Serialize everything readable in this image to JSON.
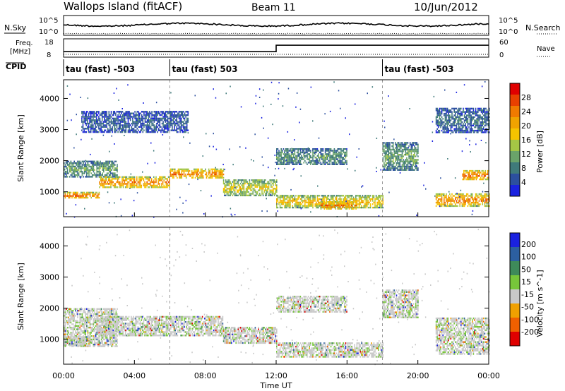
{
  "header": {
    "station": "Wallops Island (fitACF)",
    "beam": "Beam 11",
    "date": "10/Jun/2012"
  },
  "top_panels": {
    "nsky_label": "N.Sky",
    "nsearch_label": "N.Search",
    "freq_label_line1": "Freq.",
    "freq_label_line2": "[MHz]",
    "nave_label": "Nave",
    "cpid_label": "CPID",
    "left_ticks_nsky": [
      "10^5",
      "10^0"
    ],
    "right_ticks_nsearch": [
      "10^5",
      "10^0"
    ],
    "left_ticks_freq": [
      "18",
      "8"
    ],
    "right_ticks_nave": [
      "60",
      "0"
    ],
    "cpid_segments": [
      {
        "start_hour": 0,
        "label": "tau (fast) -503"
      },
      {
        "start_hour": 6,
        "label": "tau (fast) 503"
      },
      {
        "start_hour": 18,
        "label": "tau (fast) -503"
      }
    ],
    "freq_steps": [
      {
        "from_hour": 0,
        "to_hour": 12,
        "value": 11
      },
      {
        "from_hour": 12,
        "to_hour": 24,
        "value": 14.5
      }
    ]
  },
  "chart_data": [
    {
      "type": "heatmap",
      "name": "power",
      "xlabel": "",
      "ylabel": "Slant Range [km]",
      "xlim": [
        0,
        24
      ],
      "ylim": [
        200,
        4600
      ],
      "yticks": [
        "1000",
        "2000",
        "3000",
        "4000"
      ],
      "colorbar_label": "Power [dB]",
      "colorbar_ticks": [
        "4",
        "8",
        "12",
        "16",
        "20",
        "24",
        "28"
      ],
      "colorscale": [
        "#1a22e0",
        "#2c4f9e",
        "#3f7a7a",
        "#6aa36a",
        "#a4c645",
        "#f5c400",
        "#f0a300",
        "#f07a00",
        "#e84000",
        "#e00000"
      ],
      "bands": [
        {
          "from_hour": 0.0,
          "to_hour": 2.0,
          "range_from": 800,
          "range_to": 1000,
          "level": 0.85
        },
        {
          "from_hour": 0.0,
          "to_hour": 3.0,
          "range_from": 1500,
          "range_to": 2000,
          "level": 0.35
        },
        {
          "from_hour": 2.0,
          "to_hour": 6.0,
          "range_from": 1150,
          "range_to": 1500,
          "level": 0.8
        },
        {
          "from_hour": 6.0,
          "to_hour": 9.0,
          "range_from": 1450,
          "range_to": 1750,
          "level": 0.8
        },
        {
          "from_hour": 9.0,
          "to_hour": 12.0,
          "range_from": 900,
          "range_to": 1400,
          "level": 0.55
        },
        {
          "from_hour": 12.0,
          "to_hour": 18.0,
          "range_from": 500,
          "range_to": 900,
          "level": 0.65
        },
        {
          "from_hour": 14.5,
          "to_hour": 16.5,
          "range_from": 450,
          "range_to": 700,
          "level": 0.85
        },
        {
          "from_hour": 12.0,
          "to_hour": 16.0,
          "range_from": 1900,
          "range_to": 2400,
          "level": 0.3
        },
        {
          "from_hour": 18.0,
          "to_hour": 20.0,
          "range_from": 1700,
          "range_to": 2600,
          "level": 0.35
        },
        {
          "from_hour": 21.0,
          "to_hour": 24.0,
          "range_from": 550,
          "range_to": 950,
          "level": 0.8
        },
        {
          "from_hour": 22.5,
          "to_hour": 24.0,
          "range_from": 1400,
          "range_to": 1700,
          "level": 0.85
        },
        {
          "from_hour": 1.0,
          "to_hour": 7.0,
          "range_from": 2900,
          "range_to": 3600,
          "level": 0.15
        },
        {
          "from_hour": 21.0,
          "to_hour": 24.0,
          "range_from": 2900,
          "range_to": 3700,
          "level": 0.2
        }
      ]
    },
    {
      "type": "heatmap",
      "name": "velocity",
      "xlabel": "Time UT",
      "ylabel": "Slant Range [km]",
      "xlim": [
        0,
        24
      ],
      "ylim": [
        200,
        4600
      ],
      "yticks": [
        "1000",
        "2000",
        "3000",
        "4000"
      ],
      "xticks": [
        "00:00",
        "04:00",
        "08:00",
        "12:00",
        "16:00",
        "20:00",
        "00:00"
      ],
      "colorbar_label": "Velocity [m s^-1]",
      "colorbar_ticks": [
        "200",
        "100",
        "50",
        "15",
        "-15",
        "-50",
        "-100",
        "-200"
      ],
      "colorscale": [
        "#1a22e0",
        "#2c5fa0",
        "#3e8a5a",
        "#77c63a",
        "#c8c8c8",
        "#f0a000",
        "#f06000",
        "#e00000"
      ],
      "bands": [
        {
          "from_hour": 0.0,
          "to_hour": 3.0,
          "range_from": 800,
          "range_to": 2000,
          "level": 0.45
        },
        {
          "from_hour": 2.0,
          "to_hour": 9.0,
          "range_from": 1150,
          "range_to": 1750,
          "level": 0.55
        },
        {
          "from_hour": 9.0,
          "to_hour": 12.0,
          "range_from": 900,
          "range_to": 1400,
          "level": 0.5
        },
        {
          "from_hour": 12.0,
          "to_hour": 18.0,
          "range_from": 450,
          "range_to": 900,
          "level": 0.5
        },
        {
          "from_hour": 12.0,
          "to_hour": 16.0,
          "range_from": 1900,
          "range_to": 2400,
          "level": 0.4
        },
        {
          "from_hour": 18.0,
          "to_hour": 20.0,
          "range_from": 1700,
          "range_to": 2600,
          "level": 0.45
        },
        {
          "from_hour": 21.0,
          "to_hour": 24.0,
          "range_from": 550,
          "range_to": 1700,
          "level": 0.5
        },
        {
          "from_hour": 0.0,
          "to_hour": 1.5,
          "range_from": 800,
          "range_to": 1100,
          "level": 0.7
        }
      ]
    }
  ]
}
